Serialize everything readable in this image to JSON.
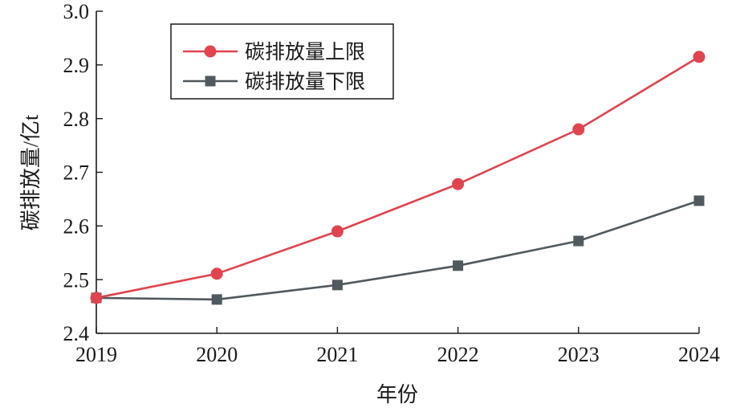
{
  "chart_data": {
    "type": "line",
    "x": [
      2019,
      2020,
      2021,
      2022,
      2023,
      2024
    ],
    "xlabel": "年份",
    "ylabel": "碳排放量/亿t",
    "ylim": [
      2.4,
      3.0
    ],
    "yticks": [
      "2.4",
      "2.5",
      "2.6",
      "2.7",
      "2.8",
      "2.9",
      "3.0"
    ],
    "grid": false,
    "legend": "upper left",
    "series": [
      {
        "name": "碳排放量上限",
        "color": "#e0444e",
        "marker": "circle",
        "values": [
          2.466,
          2.511,
          2.59,
          2.678,
          2.78,
          2.915
        ]
      },
      {
        "name": "碳排放量下限",
        "color": "#50595d",
        "marker": "square",
        "values": [
          2.466,
          2.463,
          2.49,
          2.526,
          2.572,
          2.647
        ]
      }
    ]
  }
}
